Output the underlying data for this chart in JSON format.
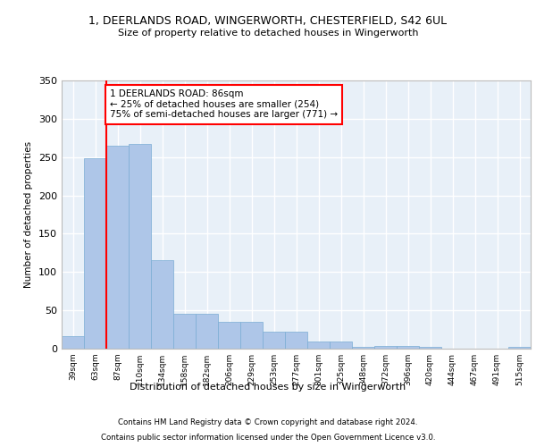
{
  "title_line1": "1, DEERLANDS ROAD, WINGERWORTH, CHESTERFIELD, S42 6UL",
  "title_line2": "Size of property relative to detached houses in Wingerworth",
  "xlabel": "Distribution of detached houses by size in Wingerworth",
  "ylabel": "Number of detached properties",
  "footnote1": "Contains HM Land Registry data © Crown copyright and database right 2024.",
  "footnote2": "Contains public sector information licensed under the Open Government Licence v3.0.",
  "bar_labels": [
    "39sqm",
    "63sqm",
    "87sqm",
    "110sqm",
    "134sqm",
    "158sqm",
    "182sqm",
    "206sqm",
    "229sqm",
    "253sqm",
    "277sqm",
    "301sqm",
    "325sqm",
    "348sqm",
    "372sqm",
    "396sqm",
    "420sqm",
    "444sqm",
    "467sqm",
    "491sqm",
    "515sqm"
  ],
  "bar_values": [
    16,
    249,
    265,
    267,
    115,
    45,
    45,
    35,
    35,
    22,
    22,
    9,
    9,
    2,
    4,
    4,
    2,
    0,
    0,
    0,
    2
  ],
  "bar_color": "#aec6e8",
  "bar_edge_color": "#7aadd4",
  "background_color": "#e8f0f8",
  "grid_color": "#ffffff",
  "vline_x": 1.5,
  "vline_color": "red",
  "annotation_text": "1 DEERLANDS ROAD: 86sqm\n← 25% of detached houses are smaller (254)\n75% of semi-detached houses are larger (771) →",
  "annotation_box_color": "white",
  "annotation_box_edge_color": "red",
  "ylim": [
    0,
    350
  ],
  "yticks": [
    0,
    50,
    100,
    150,
    200,
    250,
    300,
    350
  ]
}
